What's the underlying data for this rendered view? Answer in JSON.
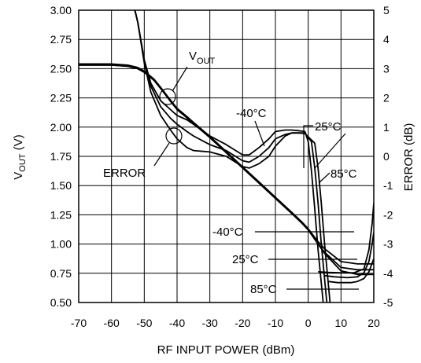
{
  "chart_data": {
    "type": "line",
    "xlabel": "RF INPUT POWER (dBm)",
    "ylabel_main": "V",
    "ylabel_sub": "OUT",
    "ylabel_unit": " (V)",
    "y2label": "ERROR (dB)",
    "xlim": [
      -70,
      20
    ],
    "ylim": [
      0.5,
      3.0
    ],
    "y2lim": [
      -5,
      5
    ],
    "grid": true,
    "x_ticks": [
      "-70",
      "-60",
      "-50",
      "-40",
      "-30",
      "-20",
      "-10",
      "0",
      "10",
      "20"
    ],
    "y_ticks": [
      "0.50",
      "0.75",
      "1.00",
      "1.25",
      "1.50",
      "1.75",
      "2.00",
      "2.25",
      "2.50",
      "2.75",
      "3.00"
    ],
    "y2_ticks": [
      "-5",
      "-4",
      "-3",
      "-2",
      "-1",
      "0",
      "1",
      "2",
      "3",
      "4",
      "5"
    ],
    "vout_series": [
      {
        "name": "-40°C",
        "x": [
          -70,
          -65,
          -60,
          -55,
          -52,
          -50,
          -47,
          -45,
          -42,
          -40,
          -37,
          -35,
          -30,
          -25,
          -20,
          -15,
          -10,
          -5,
          -2,
          0,
          3,
          5,
          10,
          15,
          19,
          20
        ],
        "y": [
          2.53,
          2.53,
          2.53,
          2.52,
          2.5,
          2.47,
          2.4,
          2.33,
          2.23,
          2.16,
          2.09,
          2.04,
          1.92,
          1.79,
          1.66,
          1.53,
          1.4,
          1.27,
          1.19,
          1.13,
          1.02,
          0.96,
          0.85,
          0.83,
          0.83,
          0.83
        ]
      },
      {
        "name": "25°C",
        "x": [
          -70,
          -65,
          -60,
          -55,
          -52,
          -50,
          -47,
          -45,
          -42,
          -40,
          -37,
          -35,
          -30,
          -25,
          -20,
          -15,
          -10,
          -5,
          -2,
          0,
          3,
          5,
          10,
          15,
          19,
          20
        ],
        "y": [
          2.53,
          2.53,
          2.53,
          2.52,
          2.5,
          2.47,
          2.4,
          2.33,
          2.22,
          2.15,
          2.08,
          2.03,
          1.91,
          1.78,
          1.65,
          1.52,
          1.39,
          1.26,
          1.18,
          1.12,
          1.0,
          0.93,
          0.8,
          0.78,
          0.78,
          0.78
        ]
      },
      {
        "name": "85°C",
        "x": [
          -70,
          -65,
          -60,
          -55,
          -52,
          -50,
          -47,
          -45,
          -42,
          -40,
          -37,
          -35,
          -30,
          -25,
          -20,
          -15,
          -10,
          -5,
          -2,
          0,
          3,
          5,
          10,
          15,
          19,
          20
        ],
        "y": [
          2.54,
          2.54,
          2.54,
          2.53,
          2.51,
          2.48,
          2.41,
          2.34,
          2.23,
          2.16,
          2.09,
          2.04,
          1.92,
          1.79,
          1.66,
          1.53,
          1.4,
          1.27,
          1.19,
          1.13,
          1.0,
          0.92,
          0.77,
          0.74,
          0.74,
          0.74
        ]
      }
    ],
    "error_series": [
      {
        "name": "-40°C",
        "x": [
          -55,
          -52,
          -50,
          -48,
          -45,
          -42,
          -40,
          -37,
          -35,
          -30,
          -25,
          -20,
          -18,
          -15,
          -12,
          -10,
          -7,
          -5,
          -3,
          -1,
          0,
          1,
          2,
          3,
          5,
          7
        ],
        "y": [
          6.0,
          4.6,
          3.3,
          2.5,
          1.9,
          1.6,
          1.4,
          1.25,
          1.1,
          0.7,
          0.4,
          0.05,
          0.05,
          0.3,
          0.6,
          0.85,
          0.9,
          0.9,
          0.88,
          0.85,
          0.5,
          -0.5,
          -1.8,
          -3.2,
          -5.5,
          -7
        ]
      },
      {
        "name": "25°C",
        "x": [
          -55,
          -52,
          -50,
          -48,
          -45,
          -42,
          -40,
          -37,
          -35,
          -30,
          -25,
          -20,
          -18,
          -15,
          -12,
          -10,
          -7,
          -5,
          -3,
          -1,
          1,
          2,
          3,
          4,
          6,
          8
        ],
        "y": [
          6.0,
          4.6,
          3.3,
          2.4,
          1.7,
          1.3,
          1.1,
          0.85,
          0.7,
          0.4,
          0.2,
          -0.15,
          -0.2,
          0.0,
          0.3,
          0.6,
          0.75,
          0.8,
          0.8,
          0.8,
          0.5,
          -0.4,
          -1.6,
          -3.0,
          -5.4,
          -7
        ]
      },
      {
        "name": "85°C",
        "x": [
          -55,
          -52,
          -50,
          -48,
          -45,
          -42,
          -40,
          -37,
          -35,
          -30,
          -25,
          -20,
          -18,
          -15,
          -12,
          -10,
          -7,
          -5,
          -3,
          -1,
          2,
          3,
          4,
          5,
          7,
          9
        ],
        "y": [
          6.0,
          4.6,
          3.2,
          2.2,
          1.4,
          0.9,
          0.6,
          0.3,
          0.2,
          0.15,
          0.0,
          -0.35,
          -0.4,
          -0.25,
          0.0,
          0.35,
          0.7,
          0.8,
          0.8,
          0.78,
          0.45,
          -0.4,
          -1.6,
          -3.0,
          -5.4,
          -7
        ]
      }
    ],
    "error_tail_series": [
      {
        "name": "-40°C",
        "x": [
          3,
          6,
          10,
          14,
          17,
          18.5,
          19.5,
          20
        ],
        "y": [
          -3.95,
          -3.97,
          -3.98,
          -3.98,
          -3.85,
          -3.2,
          -2.3,
          -1.6
        ]
      },
      {
        "name": "25°C",
        "x": [
          5,
          8,
          12,
          15,
          17,
          18.5,
          19.5,
          20
        ],
        "y": [
          -4.08,
          -4.12,
          -4.15,
          -4.12,
          -3.98,
          -3.6,
          -3.0,
          -2.6
        ]
      },
      {
        "name": "85°C",
        "x": [
          6,
          9,
          13,
          15,
          17,
          18.5,
          19.5,
          20
        ],
        "y": [
          -4.28,
          -4.32,
          -4.32,
          -4.28,
          -4.18,
          -3.95,
          -3.65,
          -3.5
        ]
      }
    ],
    "annotations": {
      "vout_main": "V",
      "vout_sub": "OUT",
      "error": "ERROR",
      "t_m40_top": "-40°C",
      "t_25_top": "25°C",
      "t_85_top": "85°C",
      "t_m40_bot": "-40°C",
      "t_25_bot": "25°C",
      "t_85_bot": "85°C"
    }
  }
}
